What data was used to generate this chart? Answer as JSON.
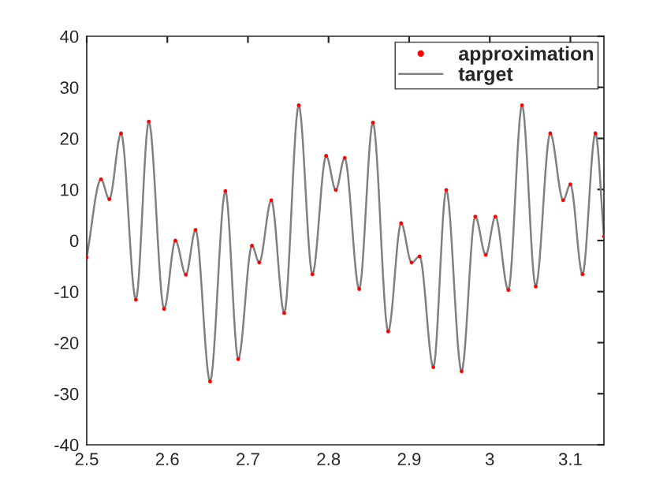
{
  "chart_data": {
    "type": "line",
    "xlim": [
      2.5,
      3.1416
    ],
    "xticks": [
      2.5,
      2.6,
      2.7,
      2.8,
      2.9,
      3,
      3.1
    ],
    "ylim": [
      -40,
      40
    ],
    "yticks": [
      -40,
      -30,
      -20,
      -10,
      0,
      10,
      20,
      30,
      40
    ],
    "grid": false,
    "legend": "top right",
    "series": [
      {
        "name": "approximation",
        "type": "scatter",
        "marker": "circle",
        "color": "#ff0000",
        "x": [
          2.5,
          2.5177,
          2.528,
          2.5426,
          2.561,
          2.577,
          2.596,
          2.61,
          2.623,
          2.635,
          2.653,
          2.672,
          2.688,
          2.705,
          2.714,
          2.729,
          2.745,
          2.763,
          2.78,
          2.797,
          2.809,
          2.82,
          2.838,
          2.855,
          2.874,
          2.89,
          2.903,
          2.913,
          2.93,
          2.946,
          2.965,
          2.982,
          2.995,
          3.007,
          3.023,
          3.04,
          3.057,
          3.075,
          3.091,
          3.1,
          3.115,
          3.131,
          3.1416
        ],
        "values": [
          -3.3,
          12.0,
          8.1,
          21.0,
          -11.6,
          23.3,
          -13.4,
          0.0,
          -6.7,
          2.1,
          -27.6,
          9.7,
          -23.2,
          -1.0,
          -4.3,
          7.9,
          -14.2,
          26.5,
          -6.6,
          16.6,
          9.9,
          16.2,
          -9.5,
          23.1,
          -17.8,
          3.4,
          -4.3,
          -3.1,
          -24.8,
          9.9,
          -25.6,
          4.7,
          -2.8,
          4.7,
          -9.7,
          26.5,
          -9.0,
          21.0,
          7.9,
          11.0,
          -6.6,
          21.0,
          0.8
        ]
      },
      {
        "name": "target",
        "marker": "none",
        "line_style": "solid",
        "color": "#808080",
        "x": [
          2.5,
          2.5177,
          2.528,
          2.5426,
          2.561,
          2.577,
          2.596,
          2.61,
          2.623,
          2.635,
          2.653,
          2.672,
          2.688,
          2.705,
          2.714,
          2.729,
          2.745,
          2.763,
          2.78,
          2.797,
          2.809,
          2.82,
          2.838,
          2.855,
          2.874,
          2.89,
          2.903,
          2.913,
          2.93,
          2.946,
          2.965,
          2.982,
          2.995,
          3.007,
          3.023,
          3.04,
          3.057,
          3.075,
          3.091,
          3.1,
          3.115,
          3.131,
          3.1416
        ],
        "values": [
          -3.3,
          12.0,
          8.1,
          21.0,
          -11.6,
          23.3,
          -13.4,
          0.0,
          -6.7,
          2.1,
          -27.6,
          9.7,
          -23.2,
          -1.0,
          -4.3,
          7.9,
          -14.2,
          26.5,
          -6.6,
          16.6,
          9.9,
          16.2,
          -9.5,
          23.1,
          -17.8,
          3.4,
          -4.3,
          -3.1,
          -24.8,
          9.9,
          -25.6,
          4.7,
          -2.8,
          4.7,
          -9.7,
          26.5,
          -9.0,
          21.0,
          7.9,
          11.0,
          -6.6,
          21.0,
          0.8
        ]
      }
    ]
  }
}
